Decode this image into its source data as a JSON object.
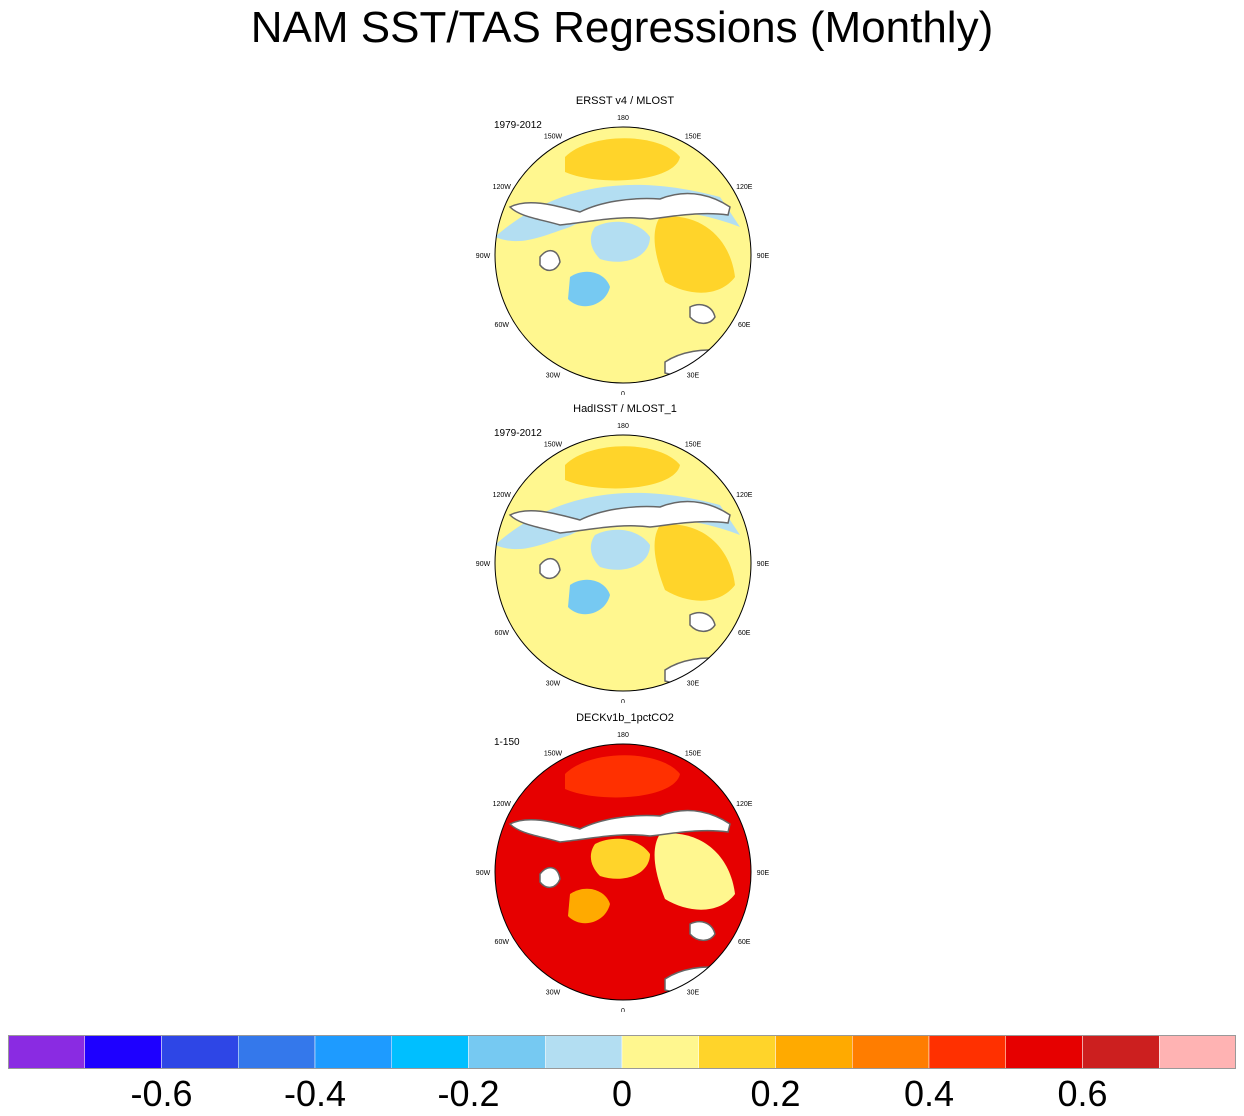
{
  "title": "NAM SST/TAS Regressions (Monthly)",
  "chart_data": {
    "type": "heatmap",
    "title": "NAM SST/TAS Regressions (Monthly)",
    "projection": "north polar stereographic",
    "longitude_labels": [
      "180",
      "150E",
      "120E",
      "90E",
      "60E",
      "30E",
      "0",
      "30W",
      "60W",
      "90W",
      "120W",
      "150W"
    ],
    "panels": [
      {
        "name": "ERSST v4 / MLOST",
        "period": "1979-2012",
        "dominant_values": {
          "pacific": 0.15,
          "north_pacific_band": -0.05,
          "atlantic_south": 0.05,
          "eurasia": 0.1,
          "greenland": -0.15,
          "arctic": -0.05
        }
      },
      {
        "name": "HadISST / MLOST_1",
        "period": "1979-2012",
        "dominant_values": {
          "pacific": 0.15,
          "north_pacific_band": -0.05,
          "atlantic_south": 0.05,
          "eurasia": 0.1,
          "greenland": -0.15,
          "arctic": -0.05
        }
      },
      {
        "name": "DECKv1b_1pctCO2",
        "period": "1-150",
        "dominant_values": {
          "pacific": 0.4,
          "north_pacific_band": 0.5,
          "atlantic_south": 0.5,
          "eurasia": 0.05,
          "greenland": 0.2,
          "arctic": 0.15
        }
      }
    ],
    "colorbar": {
      "levels": [
        -0.7,
        -0.6,
        -0.5,
        -0.4,
        -0.3,
        -0.2,
        -0.1,
        0,
        0.1,
        0.2,
        0.3,
        0.4,
        0.5,
        0.6,
        0.7
      ],
      "colors": [
        "#8a2be2",
        "#1e00ff",
        "#2e46e6",
        "#3478eb",
        "#1e9bff",
        "#00bfff",
        "#76c9f2",
        "#b3def2",
        "#fff78f",
        "#ffd42a",
        "#ffaa00",
        "#ff7d00",
        "#ff3000",
        "#e60000",
        "#cc1f1f",
        "#ffb3b3"
      ],
      "tick_labels": [
        "-0.6",
        "-0.4",
        "-0.2",
        "0",
        "0.2",
        "0.4",
        "0.6"
      ],
      "tick_values": [
        -0.6,
        -0.4,
        -0.2,
        0,
        0.2,
        0.4,
        0.6
      ]
    }
  }
}
